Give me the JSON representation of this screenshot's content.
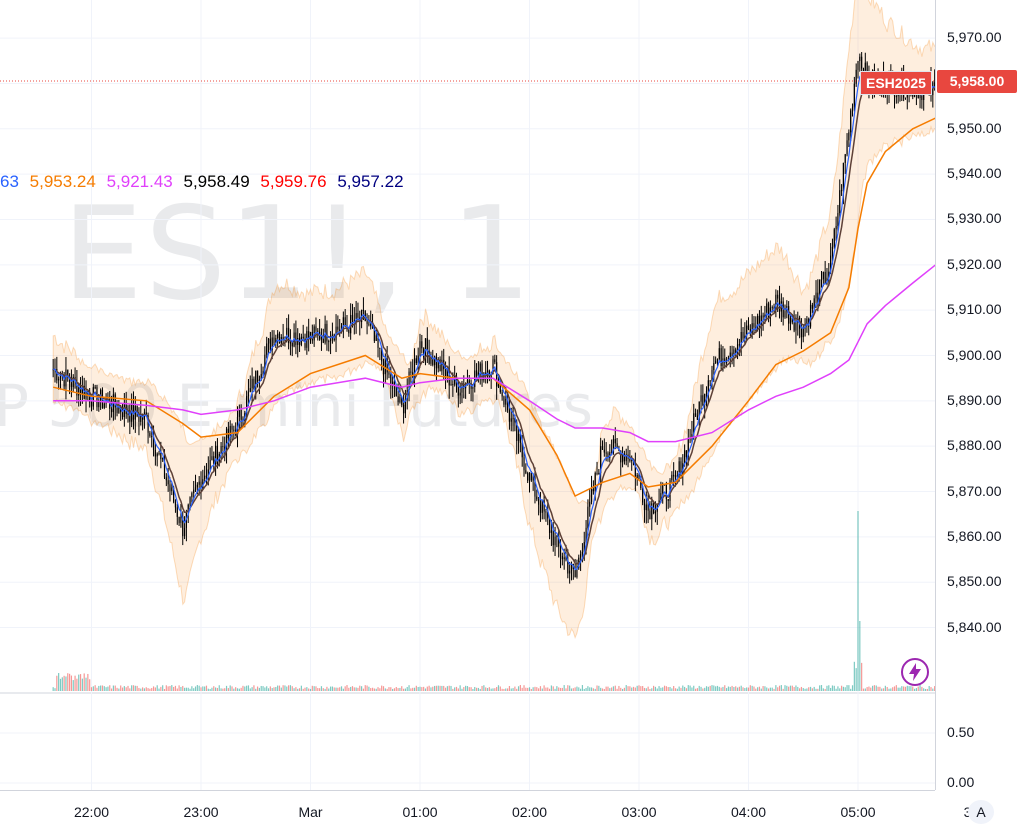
{
  "symbol": {
    "ticker_watermark": "ES1!, 1",
    "name_watermark": "P 500 E-mini Futures",
    "contract": "ESH2025",
    "last_price": "5,958.00"
  },
  "legend": {
    "values": [
      {
        "text": "63",
        "color": "#2962ff"
      },
      {
        "text": "5,953.24",
        "color": "#f57c00"
      },
      {
        "text": "5,921.43",
        "color": "#e040fb"
      },
      {
        "text": "5,958.49",
        "color": "#000000"
      },
      {
        "text": "5,959.76",
        "color": "#ff0000"
      },
      {
        "text": "5,957.22",
        "color": "#000080"
      }
    ]
  },
  "price_axis": {
    "ticks": [
      "5,970.00",
      "5,960.00",
      "5,950.00",
      "5,940.00",
      "5,930.00",
      "5,920.00",
      "5,910.00",
      "5,900.00",
      "5,890.00",
      "5,880.00",
      "5,870.00",
      "5,860.00",
      "5,850.00",
      "5,840.00"
    ],
    "min": 5833.5,
    "max": 5974,
    "volume_ticks": [
      "0.50",
      "0.00"
    ]
  },
  "time_axis": {
    "labels": [
      "22:00",
      "23:00",
      "Mar",
      "01:00",
      "02:00",
      "03:00",
      "04:00",
      "05:00",
      "3"
    ],
    "auto_button": "A"
  },
  "colors": {
    "up": "#26a69a",
    "down": "#ef5350",
    "candle": "#000000",
    "ema_fast": "#2962ff",
    "ema_mid": "#f57c00",
    "ema_slow": "#e040fb",
    "band_fill": "#f57c00",
    "price_tag": "#e8473f",
    "price_line": "#e8473f"
  },
  "chart_data": {
    "type": "line",
    "title": "ES1!, 1",
    "x_start": "21:39",
    "x_end": "05:47",
    "x": [
      "21:39",
      "22:00",
      "22:30",
      "22:50",
      "23:00",
      "23:20",
      "23:40",
      "00:00",
      "00:30",
      "00:50",
      "01:00",
      "01:20",
      "01:40",
      "02:00",
      "02:15",
      "02:25",
      "02:40",
      "02:55",
      "03:05",
      "03:20",
      "03:40",
      "04:00",
      "04:15",
      "04:30",
      "04:45",
      "04:55",
      "05:00",
      "05:05",
      "05:15",
      "05:30",
      "05:47"
    ],
    "series": [
      {
        "name": "close",
        "values": [
          5897,
          5891,
          5886,
          5862,
          5873,
          5885,
          5905,
          5904,
          5908,
          5888,
          5903,
          5893,
          5898,
          5873,
          5858,
          5851,
          5880,
          5878,
          5866,
          5872,
          5898,
          5905,
          5912,
          5906,
          5920,
          5950,
          5967,
          5961,
          5960,
          5959,
          5958
        ]
      },
      {
        "name": "ema_mid",
        "values": [
          5893,
          5891,
          5890,
          5885,
          5882,
          5883,
          5891,
          5896,
          5900,
          5895,
          5896,
          5895,
          5895,
          5888,
          5878,
          5869,
          5872,
          5874,
          5871,
          5872,
          5880,
          5890,
          5898,
          5901,
          5905,
          5915,
          5928,
          5938,
          5945,
          5950,
          5953.24
        ]
      },
      {
        "name": "ema_slow",
        "values": [
          5890,
          5890,
          5889,
          5888,
          5887,
          5888,
          5890,
          5893,
          5895,
          5893,
          5894,
          5895,
          5895,
          5890,
          5886,
          5884,
          5884,
          5883,
          5881,
          5881,
          5883,
          5888,
          5891,
          5893,
          5896,
          5899,
          5903,
          5907,
          5911,
          5916,
          5921.43
        ]
      }
    ],
    "volume_spike_time": "05:00",
    "ylim": [
      5833.5,
      5974
    ]
  }
}
